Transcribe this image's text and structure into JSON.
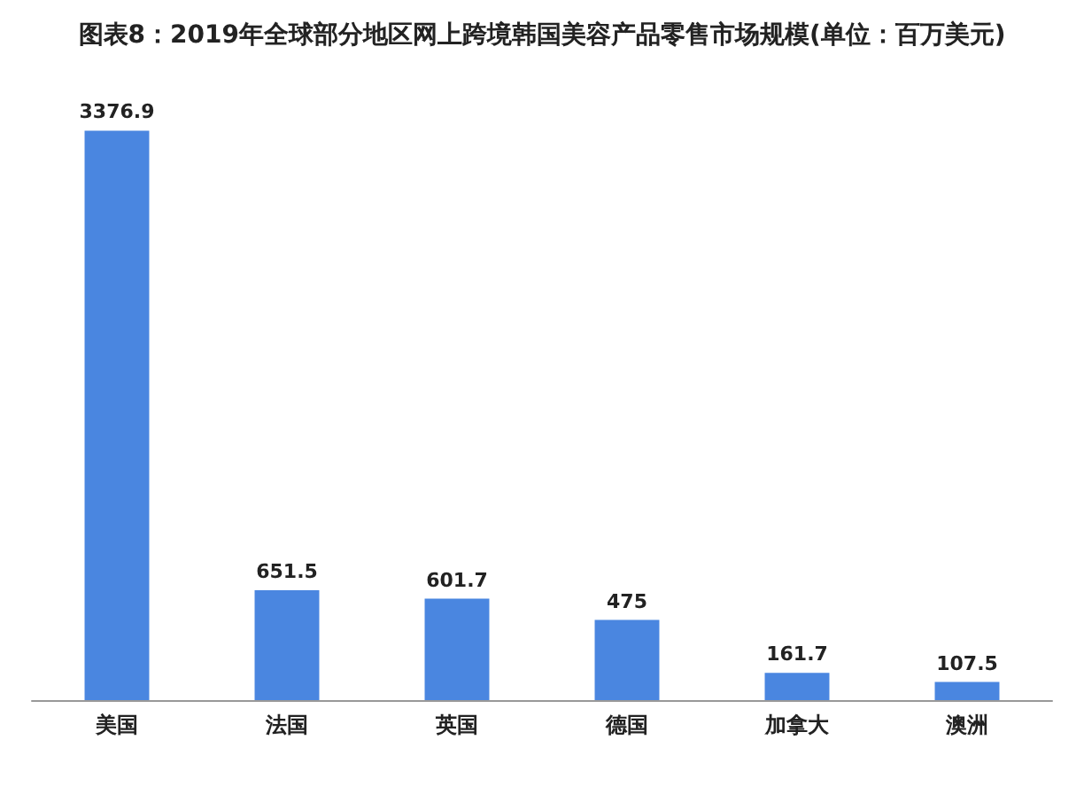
{
  "chart_data": {
    "type": "bar",
    "title": "图表8：2019年全球部分地区网上跨境韩国美容产品零售市场规模(单位：百万美元)",
    "categories": [
      "美国",
      "法国",
      "英国",
      "德国",
      "加拿大",
      "澳洲"
    ],
    "values": [
      3376.9,
      651.5,
      601.7,
      475,
      161.7,
      107.5
    ],
    "color": "#4a86e0",
    "data_labels": true
  }
}
